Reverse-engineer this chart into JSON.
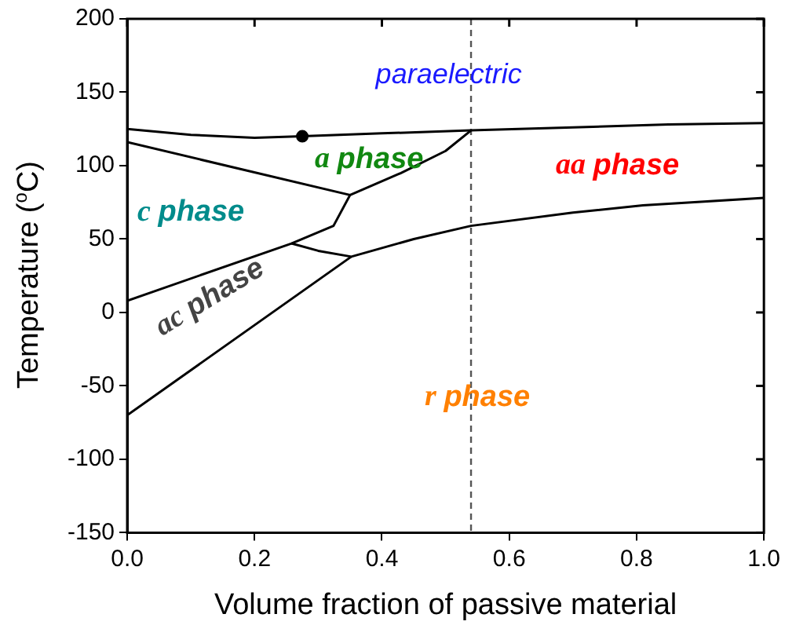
{
  "chart_data": {
    "type": "line",
    "xlabel": "Volume fraction of passive material",
    "ylabel": "Temperature ($^{o}$C)",
    "xlim": [
      0,
      1
    ],
    "xticks": [
      {
        "value": 0,
        "label": "0.0"
      },
      {
        "value": 0.2,
        "label": "0.2"
      },
      {
        "value": 0.4,
        "label": "0.4"
      },
      {
        "value": 0.6,
        "label": "0.6"
      },
      {
        "value": 0.8,
        "label": "0.8"
      },
      {
        "value": 1,
        "label": "1.0"
      }
    ],
    "ylim": [
      -150,
      200
    ],
    "yticks": [
      -150,
      -100,
      -50,
      0,
      50,
      100,
      150,
      200
    ],
    "grid": false,
    "legend": false,
    "marker": "none",
    "line_style": "solid",
    "series": [
      {
        "color": "#000000",
        "x": [
          0,
          0.1,
          0.2,
          0.275,
          0.4,
          0.54,
          0.7,
          0.85,
          1.0
        ],
        "values": [
          125,
          121,
          119,
          120,
          122,
          124,
          126,
          128,
          129
        ]
      },
      {
        "color": "#000000",
        "x": [
          0,
          0.35,
          0.43,
          0.5,
          0.54
        ],
        "values": [
          116,
          80,
          95,
          110,
          124
        ]
      },
      {
        "color": "#000000",
        "x": [
          0.35,
          0.324,
          0.258,
          0
        ],
        "values": [
          80,
          59,
          47,
          8
        ]
      },
      {
        "color": "#000000",
        "x": [
          0,
          0.352
        ],
        "values": [
          -70,
          38
        ]
      },
      {
        "color": "#000000",
        "x": [
          0.258,
          0.3,
          0.352,
          0.45,
          0.54,
          0.7,
          0.81,
          1.0
        ],
        "values": [
          47,
          42,
          38,
          50,
          59,
          68,
          73,
          78
        ]
      },
      {
        "type": "scatter",
        "marker": "circle",
        "color": "#000000",
        "x": [
          0.275
        ],
        "values": [
          120
        ]
      }
    ],
    "ref_lines": [
      {
        "axis": "x",
        "value": 0.54,
        "color": "#555555",
        "line_style": "dashed"
      }
    ],
    "annotations": [
      "paraelectric",
      "a phase",
      "aa phase",
      "c phase",
      "ac phase",
      "r phase"
    ]
  }
}
